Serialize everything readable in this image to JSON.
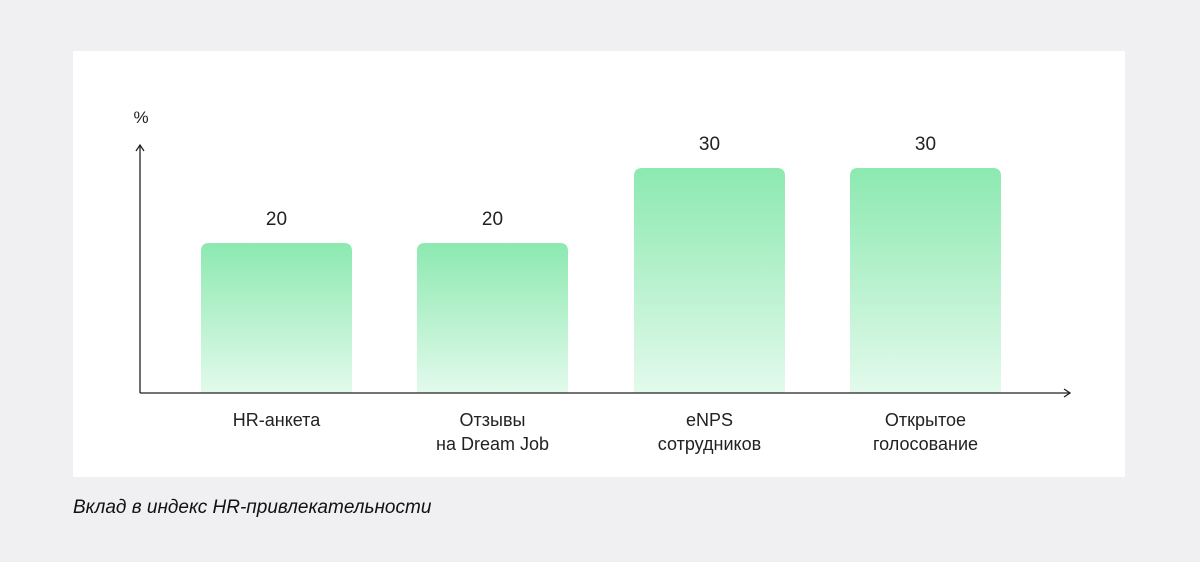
{
  "chart_data": {
    "type": "bar",
    "ylabel": "%",
    "xlabel": "",
    "categories": [
      [
        "HR-анкета"
      ],
      [
        "Отзывы",
        "на Dream Job"
      ],
      [
        "eNPS",
        "сотрудников"
      ],
      [
        "Открытое",
        "голосование"
      ]
    ],
    "values": [
      20,
      20,
      30,
      30
    ],
    "ylim": [
      0,
      42
    ],
    "grid": false,
    "bar_gradient": [
      "#8ce9b0",
      "#e3faec"
    ]
  },
  "caption": "Вклад в индекс HR-привлекательности"
}
